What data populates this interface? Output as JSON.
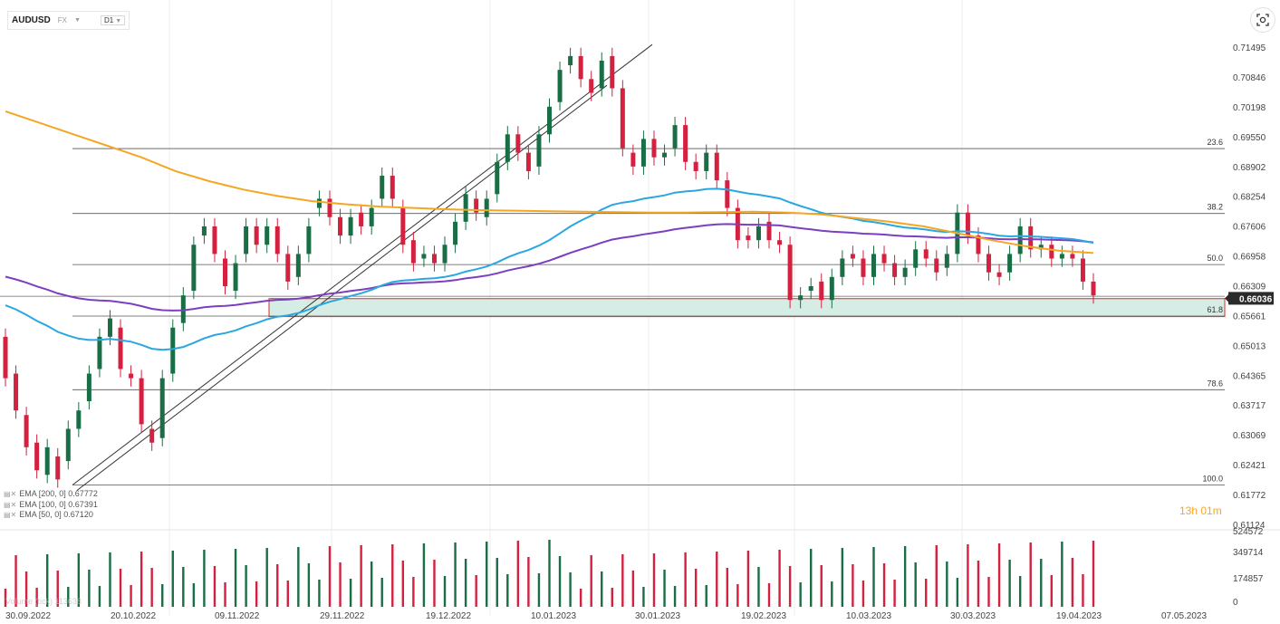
{
  "header": {
    "symbol": "AUDUSD",
    "market": "FX",
    "timeframe": "D1"
  },
  "indicators": [
    {
      "label": "EMA [200, 0] 0.67772",
      "color": "#f5a623"
    },
    {
      "label": "EMA [100, 0] 0.67391",
      "color": "#7b3fbf"
    },
    {
      "label": "EMA [50, 0] 0.67120",
      "color": "#2aa7e0"
    }
  ],
  "countdown": {
    "h": "13h",
    "m": "01m"
  },
  "volume_label": "Volume (tick) 113638",
  "colors": {
    "up": "#1a6e45",
    "down": "#d3213f",
    "ema200": "#f5a623",
    "ema100": "#7b3fbf",
    "ema50": "#2aa7e0",
    "zone_fill": "#d6ede6",
    "zone_border": "#e24a4a"
  },
  "chart_data": {
    "type": "candlestick",
    "instrument": "AUDUSD",
    "timeframe": "D1",
    "price_axis_ticks": [
      "0.71495",
      "0.70846",
      "0.70198",
      "0.69550",
      "0.68902",
      "0.68254",
      "0.67606",
      "0.66958",
      "0.66309",
      "0.65661",
      "0.65013",
      "0.64365",
      "0.63717",
      "0.63069",
      "0.62421",
      "0.61772",
      "0.61124"
    ],
    "current_price": "0.66036",
    "date_axis_ticks": [
      "30.09.2022",
      "20.10.2022",
      "09.11.2022",
      "29.11.2022",
      "19.12.2022",
      "10.01.2023",
      "30.01.2023",
      "19.02.2023",
      "10.03.2023",
      "30.03.2023",
      "19.04.2023",
      "07.05.2023"
    ],
    "volume_axis_ticks": [
      "524572",
      "349714",
      "174857",
      "0"
    ],
    "fibonacci_levels": [
      {
        "label": "23.6",
        "price": 0.6929
      },
      {
        "label": "38.2",
        "price": 0.6788
      },
      {
        "label": "50.0",
        "price": 0.6677
      },
      {
        "label": "61.8",
        "price": 0.6565
      },
      {
        "label": "78.6",
        "price": 0.6405
      },
      {
        "label": "100.0",
        "price": 0.6198
      }
    ],
    "horizontal_line": 0.6608,
    "support_zone": {
      "top": 0.6603,
      "bottom": 0.6564
    },
    "trendlines": [
      {
        "from": {
          "x": 80,
          "price": 0.6198
        },
        "to": {
          "x": 720,
          "price": 0.7155
        }
      },
      {
        "from": {
          "x": 80,
          "price": 0.6198
        },
        "to": {
          "x": 720,
          "price": 0.7155
        }
      }
    ],
    "ema200": [
      0.701,
      0.6985,
      0.696,
      0.6935,
      0.691,
      0.688,
      0.6858,
      0.684,
      0.6826,
      0.6815,
      0.6808,
      0.6803,
      0.68,
      0.6797,
      0.6795,
      0.6794,
      0.6793,
      0.6792,
      0.6791,
      0.679,
      0.679,
      0.6791,
      0.6792,
      0.679,
      0.6786,
      0.6778,
      0.677,
      0.676,
      0.6745,
      0.673,
      0.6717,
      0.6707,
      0.6702
    ],
    "candles": [
      [
        0.652,
        0.643
      ],
      [
        0.644,
        0.636
      ],
      [
        0.635,
        0.628
      ],
      [
        0.629,
        0.623
      ],
      [
        0.622,
        0.628
      ],
      [
        0.626,
        0.621
      ],
      [
        0.625,
        0.632
      ],
      [
        0.632,
        0.636
      ],
      [
        0.638,
        0.644
      ],
      [
        0.645,
        0.652
      ],
      [
        0.652,
        0.656
      ],
      [
        0.654,
        0.645
      ],
      [
        0.644,
        0.643
      ],
      [
        0.643,
        0.633
      ],
      [
        0.632,
        0.629
      ],
      [
        0.63,
        0.643
      ],
      [
        0.644,
        0.654
      ],
      [
        0.655,
        0.661
      ],
      [
        0.662,
        0.672
      ],
      [
        0.674,
        0.676
      ],
      [
        0.676,
        0.67
      ],
      [
        0.669,
        0.663
      ],
      [
        0.662,
        0.668
      ],
      [
        0.67,
        0.676
      ],
      [
        0.676,
        0.672
      ],
      [
        0.672,
        0.676
      ],
      [
        0.676,
        0.67
      ],
      [
        0.67,
        0.664
      ],
      [
        0.665,
        0.67
      ],
      [
        0.67,
        0.676
      ],
      [
        0.68,
        0.682
      ],
      [
        0.682,
        0.678
      ],
      [
        0.678,
        0.674
      ],
      [
        0.674,
        0.678
      ],
      [
        0.679,
        0.676
      ],
      [
        0.676,
        0.68
      ],
      [
        0.682,
        0.687
      ],
      [
        0.687,
        0.682
      ],
      [
        0.68,
        0.672
      ],
      [
        0.673,
        0.668
      ],
      [
        0.669,
        0.67
      ],
      [
        0.67,
        0.668
      ],
      [
        0.668,
        0.672
      ],
      [
        0.672,
        0.677
      ],
      [
        0.677,
        0.683
      ],
      [
        0.682,
        0.679
      ],
      [
        0.678,
        0.682
      ],
      [
        0.683,
        0.69
      ],
      [
        0.69,
        0.696
      ],
      [
        0.696,
        0.692
      ],
      [
        0.692,
        0.688
      ],
      [
        0.689,
        0.696
      ],
      [
        0.696,
        0.702
      ],
      [
        0.703,
        0.71
      ],
      [
        0.711,
        0.713
      ],
      [
        0.713,
        0.708
      ],
      [
        0.708,
        0.705
      ],
      [
        0.706,
        0.712
      ],
      [
        0.713,
        0.706
      ],
      [
        0.706,
        0.693
      ],
      [
        0.692,
        0.689
      ],
      [
        0.689,
        0.695
      ],
      [
        0.695,
        0.691
      ],
      [
        0.691,
        0.692
      ],
      [
        0.693,
        0.698
      ],
      [
        0.698,
        0.69
      ],
      [
        0.69,
        0.688
      ],
      [
        0.688,
        0.692
      ],
      [
        0.692,
        0.686
      ],
      [
        0.686,
        0.68
      ],
      [
        0.68,
        0.673
      ],
      [
        0.674,
        0.673
      ],
      [
        0.673,
        0.676
      ],
      [
        0.677,
        0.673
      ],
      [
        0.673,
        0.672
      ],
      [
        0.672,
        0.66
      ],
      [
        0.66,
        0.661
      ],
      [
        0.662,
        0.663
      ],
      [
        0.664,
        0.66
      ],
      [
        0.66,
        0.665
      ],
      [
        0.665,
        0.669
      ],
      [
        0.67,
        0.669
      ],
      [
        0.669,
        0.665
      ],
      [
        0.665,
        0.67
      ],
      [
        0.67,
        0.668
      ],
      [
        0.668,
        0.665
      ],
      [
        0.665,
        0.667
      ],
      [
        0.667,
        0.671
      ],
      [
        0.671,
        0.669
      ],
      [
        0.669,
        0.666
      ],
      [
        0.667,
        0.67
      ],
      [
        0.67,
        0.679
      ],
      [
        0.679,
        0.674
      ],
      [
        0.674,
        0.67
      ],
      [
        0.67,
        0.666
      ],
      [
        0.666,
        0.665
      ],
      [
        0.666,
        0.67
      ],
      [
        0.67,
        0.676
      ],
      [
        0.676,
        0.671
      ],
      [
        0.671,
        0.672
      ],
      [
        0.672,
        0.669
      ],
      [
        0.669,
        0.67
      ],
      [
        0.67,
        0.669
      ],
      [
        0.669,
        0.664
      ],
      [
        0.664,
        0.661
      ]
    ]
  }
}
